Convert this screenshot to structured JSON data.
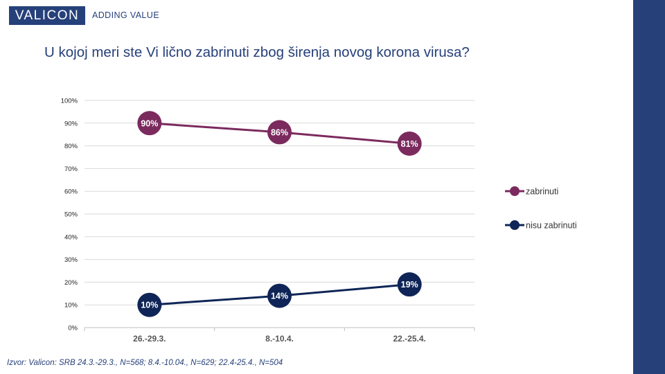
{
  "header": {
    "logo_text": "VALICON",
    "tagline": "ADDING VALUE"
  },
  "title": "U kojoj meri ste Vi lično zabrinuti zbog širenja novog korona virusa?",
  "footnote": "Izvor: Valicon: SRB 24.3.-29.3., N=568; 8.4.-10.04., N=629; 22.4-25.4., N=504",
  "colors": {
    "brand": "#26407a",
    "zabrinuti": "#7b2a5e",
    "nisu_zabrinuti": "#0f2557",
    "grid": "#d9d9d9"
  },
  "chart_data": {
    "type": "line",
    "categories": [
      "26.-29.3.",
      "8.-10.4.",
      "22.-25.4."
    ],
    "series": [
      {
        "name": "zabrinuti",
        "values": [
          90,
          86,
          81
        ],
        "labels": [
          "90%",
          "86%",
          "81%"
        ]
      },
      {
        "name": "nisu zabrinuti",
        "values": [
          10,
          14,
          19
        ],
        "labels": [
          "10%",
          "14%",
          "19%"
        ]
      }
    ],
    "y_ticks": [
      "0%",
      "10%",
      "20%",
      "30%",
      "40%",
      "50%",
      "60%",
      "70%",
      "80%",
      "90%",
      "100%"
    ],
    "ylim": [
      0,
      100
    ],
    "grid": true,
    "legend": "right"
  }
}
